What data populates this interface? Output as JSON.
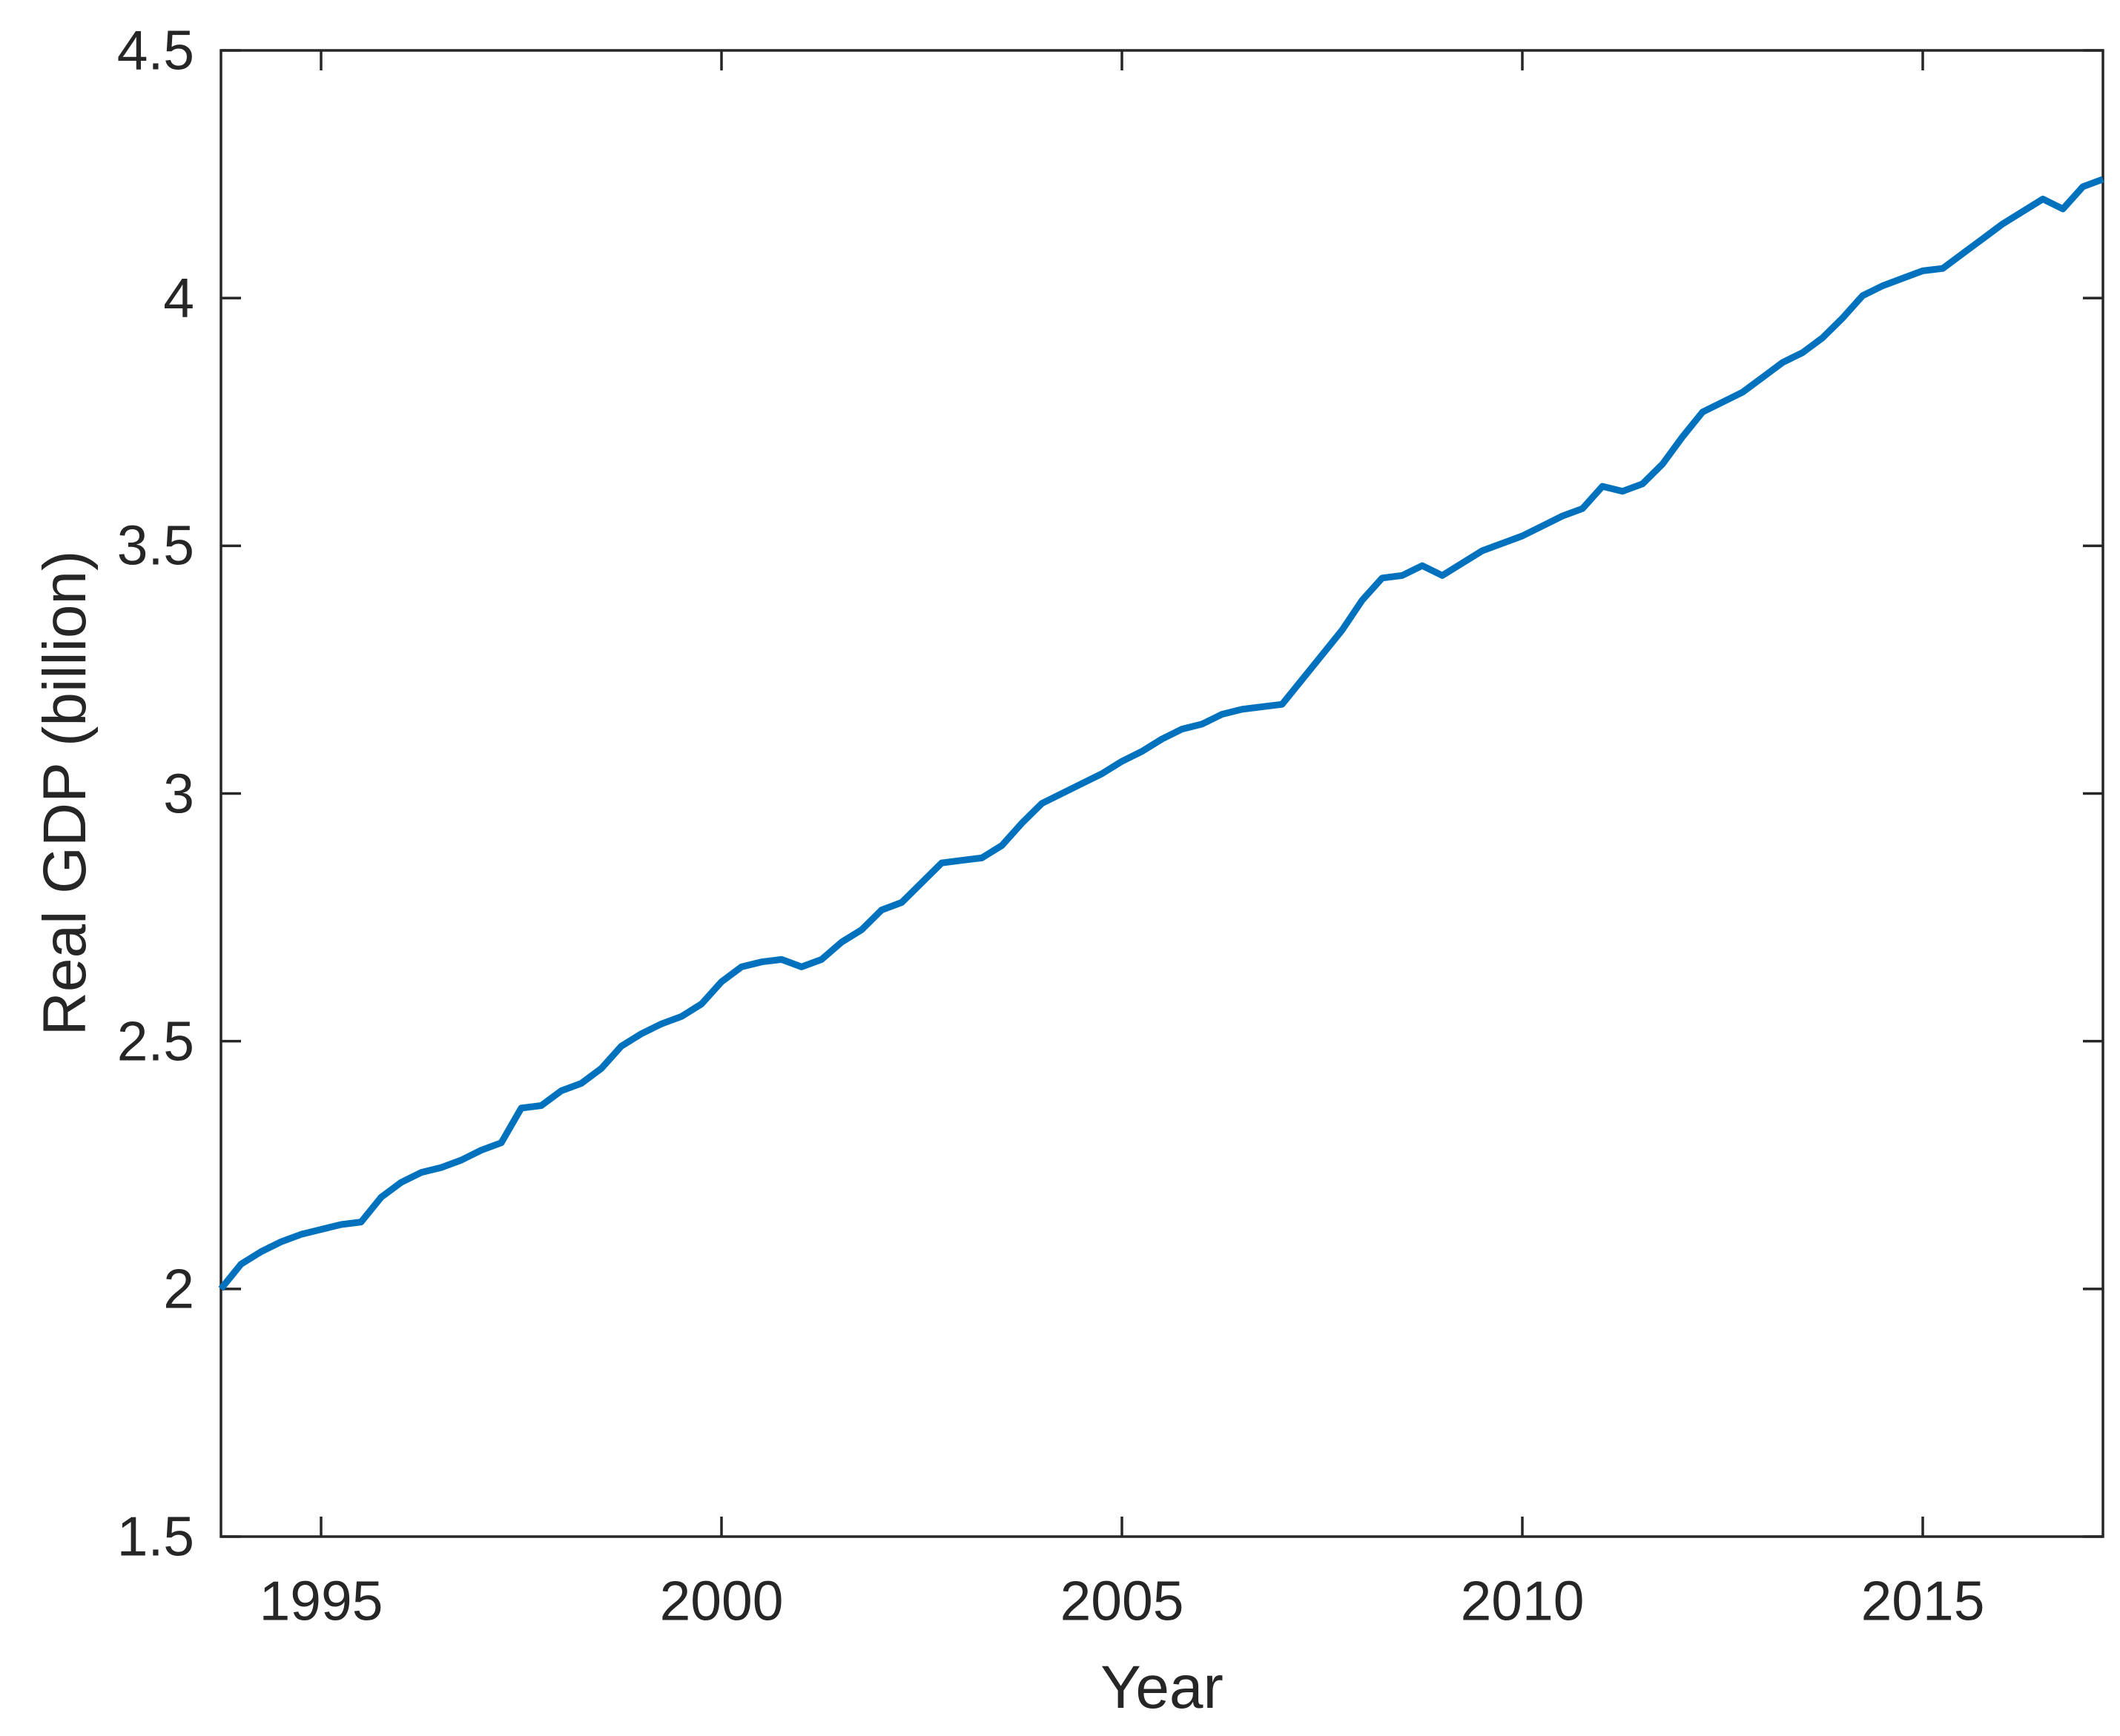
{
  "figure": {
    "background": "#ffffff"
  },
  "chart_data": {
    "type": "line",
    "xlabel": "Year",
    "ylabel": "Real GDP (billion)",
    "xlim": [
      1993.75,
      2017.25
    ],
    "ylim": [
      1.5,
      4.5
    ],
    "xticks": [
      1995,
      2000,
      2005,
      2010,
      2015
    ],
    "xtick_labels": [
      "1995",
      "2000",
      "2005",
      "2010",
      "2015"
    ],
    "yticks": [
      1.5,
      2,
      2.5,
      3,
      3.5,
      4,
      4.5
    ],
    "ytick_labels": [
      "1.5",
      "2",
      "2.5",
      "3",
      "3.5",
      "4",
      "4.5"
    ],
    "grid": false,
    "box": true,
    "tick_direction": "in",
    "axis_color": "#262626",
    "x": [
      1993.75,
      1994.0,
      1994.25,
      1994.5,
      1994.75,
      1995.0,
      1995.25,
      1995.5,
      1995.75,
      1996.0,
      1996.25,
      1996.5,
      1996.75,
      1997.0,
      1997.25,
      1997.5,
      1997.75,
      1998.0,
      1998.25,
      1998.5,
      1998.75,
      1999.0,
      1999.25,
      1999.5,
      1999.75,
      2000.0,
      2000.25,
      2000.5,
      2000.75,
      2001.0,
      2001.25,
      2001.5,
      2001.75,
      2002.0,
      2002.25,
      2002.5,
      2002.75,
      2003.0,
      2003.25,
      2003.5,
      2003.75,
      2004.0,
      2004.25,
      2004.5,
      2004.75,
      2005.0,
      2005.25,
      2005.5,
      2005.75,
      2006.0,
      2006.25,
      2006.5,
      2006.75,
      2007.0,
      2007.25,
      2007.5,
      2007.75,
      2008.0,
      2008.25,
      2008.5,
      2008.75,
      2009.0,
      2009.25,
      2009.5,
      2009.75,
      2010.0,
      2010.25,
      2010.5,
      2010.75,
      2011.0,
      2011.25,
      2011.5,
      2011.75,
      2012.0,
      2012.25,
      2012.5,
      2012.75,
      2013.0,
      2013.25,
      2013.5,
      2013.75,
      2014.0,
      2014.25,
      2014.5,
      2014.75,
      2015.0,
      2015.25,
      2015.5,
      2015.75,
      2016.0,
      2016.25,
      2016.5,
      2016.75,
      2017.0,
      2017.25
    ],
    "series": [
      {
        "name": "Real GDP",
        "color": "#0072BD",
        "values": [
          2.0,
          2.05,
          2.075,
          2.095,
          2.11,
          2.12,
          2.13,
          2.135,
          2.185,
          2.215,
          2.235,
          2.245,
          2.26,
          2.28,
          2.295,
          2.365,
          2.37,
          2.4,
          2.415,
          2.445,
          2.49,
          2.515,
          2.535,
          2.55,
          2.575,
          2.62,
          2.65,
          2.66,
          2.665,
          2.65,
          2.665,
          2.7,
          2.725,
          2.765,
          2.78,
          2.82,
          2.86,
          2.865,
          2.87,
          2.895,
          2.94,
          2.98,
          3.0,
          3.02,
          3.04,
          3.065,
          3.085,
          3.11,
          3.13,
          3.14,
          3.16,
          3.17,
          3.175,
          3.18,
          3.23,
          3.28,
          3.33,
          3.39,
          3.435,
          3.44,
          3.46,
          3.44,
          3.465,
          3.49,
          3.505,
          3.52,
          3.54,
          3.56,
          3.575,
          3.62,
          3.61,
          3.625,
          3.665,
          3.72,
          3.77,
          3.79,
          3.81,
          3.84,
          3.87,
          3.89,
          3.92,
          3.96,
          4.005,
          4.025,
          4.04,
          4.055,
          4.06,
          4.09,
          4.12,
          4.15,
          4.175,
          4.2,
          4.18,
          4.225,
          4.24
        ]
      }
    ]
  }
}
